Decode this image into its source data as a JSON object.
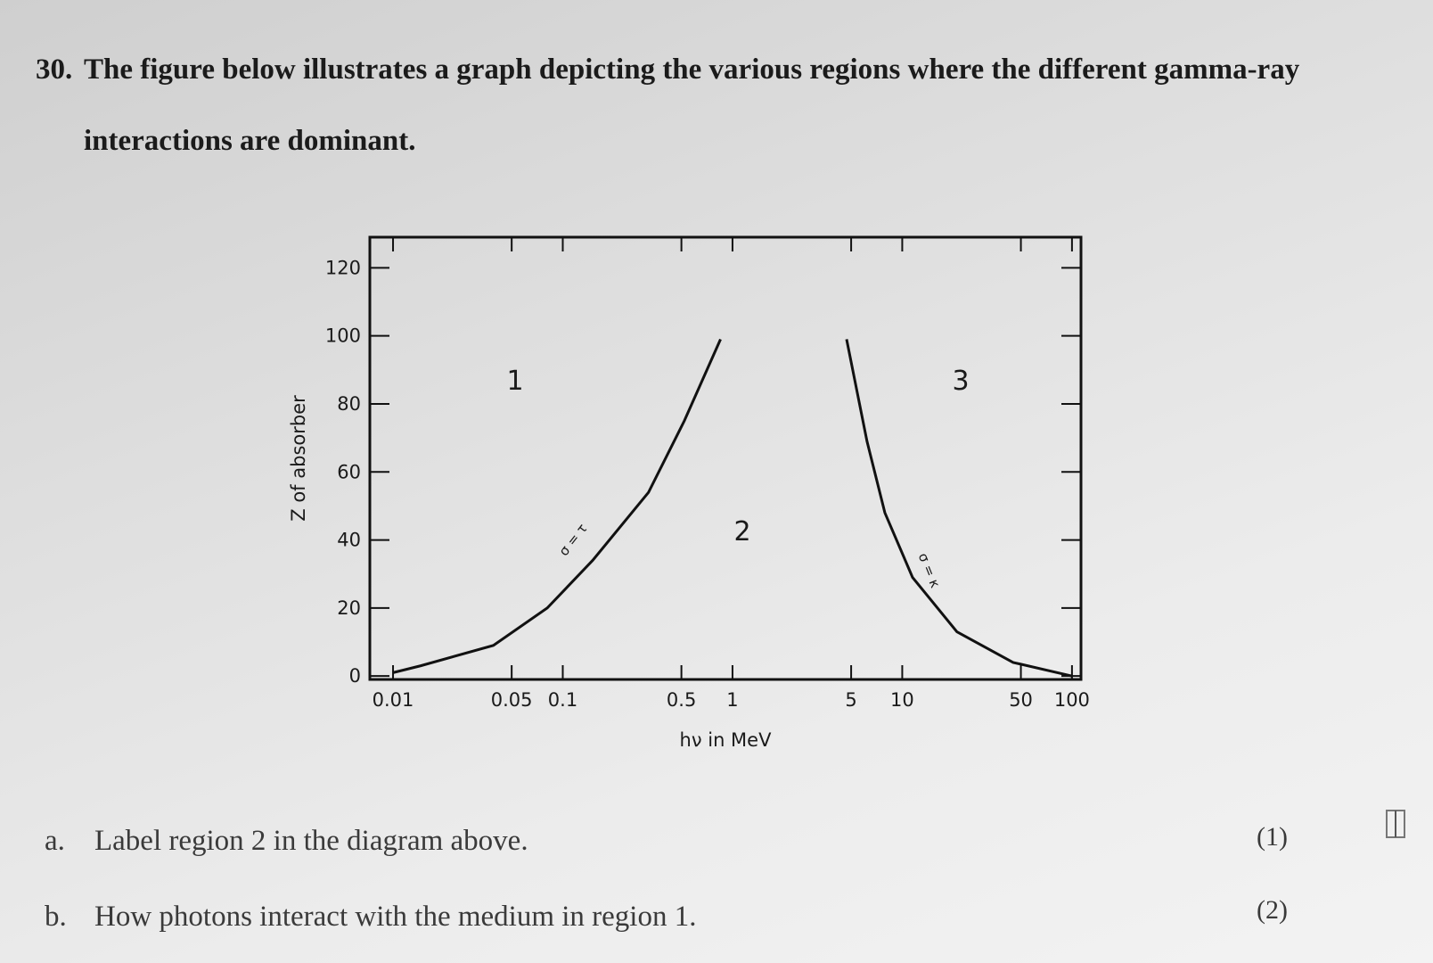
{
  "question": {
    "number": "30.",
    "text": "The figure below illustrates a graph depicting the various regions where the different gamma-ray interactions are dominant."
  },
  "chart_data": {
    "type": "line",
    "xlabel": "hν in MeV",
    "ylabel": "Z of absorber",
    "xscale": "log",
    "xlim": [
      0.0073,
      113
    ],
    "ylim": [
      -1,
      129
    ],
    "xticks": [
      0.01,
      0.05,
      0.1,
      0.5,
      1,
      5,
      10,
      50,
      100
    ],
    "yticks": [
      0,
      20,
      40,
      60,
      80,
      100,
      120
    ],
    "regions": [
      "1",
      "2",
      "3"
    ],
    "series": [
      {
        "name": "σ = τ",
        "color": "#111111",
        "x": [
          0.01,
          0.0145,
          0.039,
          0.081,
          0.15,
          0.32,
          0.52,
          0.85
        ],
        "values": [
          1,
          3,
          9,
          20,
          34,
          54,
          75,
          99
        ]
      },
      {
        "name": "σ = κ",
        "color": "#111111",
        "x": [
          4.7,
          6.2,
          7.9,
          11.5,
          21,
          45,
          100
        ],
        "values": [
          99,
          69,
          48,
          29,
          13,
          4,
          0
        ]
      }
    ]
  },
  "parts": [
    {
      "label": "a.",
      "text": "Label region 2 in the diagram above.",
      "marks": "(1)"
    },
    {
      "label": "b.",
      "text": "How photons interact with the medium in region 1.",
      "marks": "(2)"
    }
  ]
}
